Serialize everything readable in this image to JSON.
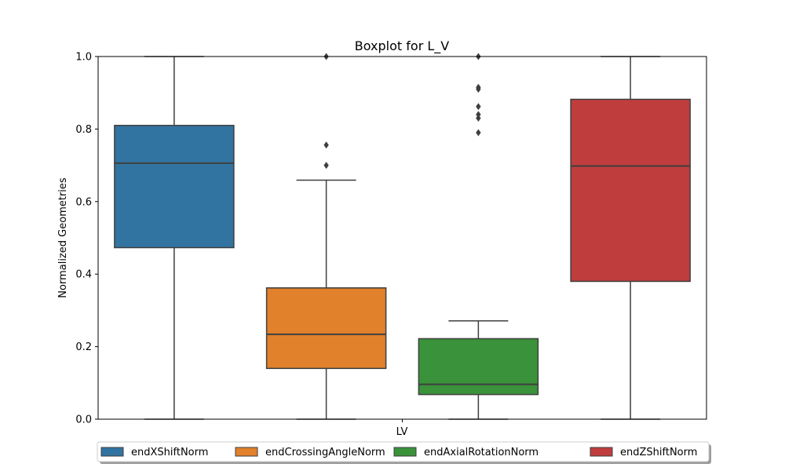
{
  "chart_data": {
    "type": "boxplot",
    "title": "Boxplot for L_V",
    "xlabel": "LV",
    "ylabel": "Normalized Geometries",
    "ylim": [
      0,
      1
    ],
    "yticks": [
      "0.0",
      "0.2",
      "0.4",
      "0.6",
      "0.8",
      "1.0"
    ],
    "grid": false,
    "legend_position": "bottom-center",
    "categories": [
      "LV"
    ],
    "series": [
      {
        "name": "endXShiftNorm",
        "color": "#3274a1",
        "whisker_low": 0.0,
        "q1": 0.473,
        "median": 0.706,
        "q3": 0.81,
        "whisker_high": 1.0,
        "outliers": []
      },
      {
        "name": "endCrossingAngleNorm",
        "color": "#e1812c",
        "whisker_low": 0.0,
        "q1": 0.14,
        "median": 0.234,
        "q3": 0.362,
        "whisker_high": 0.659,
        "outliers": [
          0.7,
          0.756,
          1.0
        ]
      },
      {
        "name": "endAxialRotationNorm",
        "color": "#3a923a",
        "whisker_low": 0.0,
        "q1": 0.068,
        "median": 0.096,
        "q3": 0.222,
        "whisker_high": 0.271,
        "outliers": [
          0.79,
          0.83,
          0.84,
          0.862,
          0.91,
          0.915,
          1.0
        ]
      },
      {
        "name": "endZShiftNorm",
        "color": "#c03d3e",
        "whisker_low": 0.0,
        "q1": 0.38,
        "median": 0.698,
        "q3": 0.882,
        "whisker_high": 1.0,
        "outliers": []
      }
    ]
  }
}
